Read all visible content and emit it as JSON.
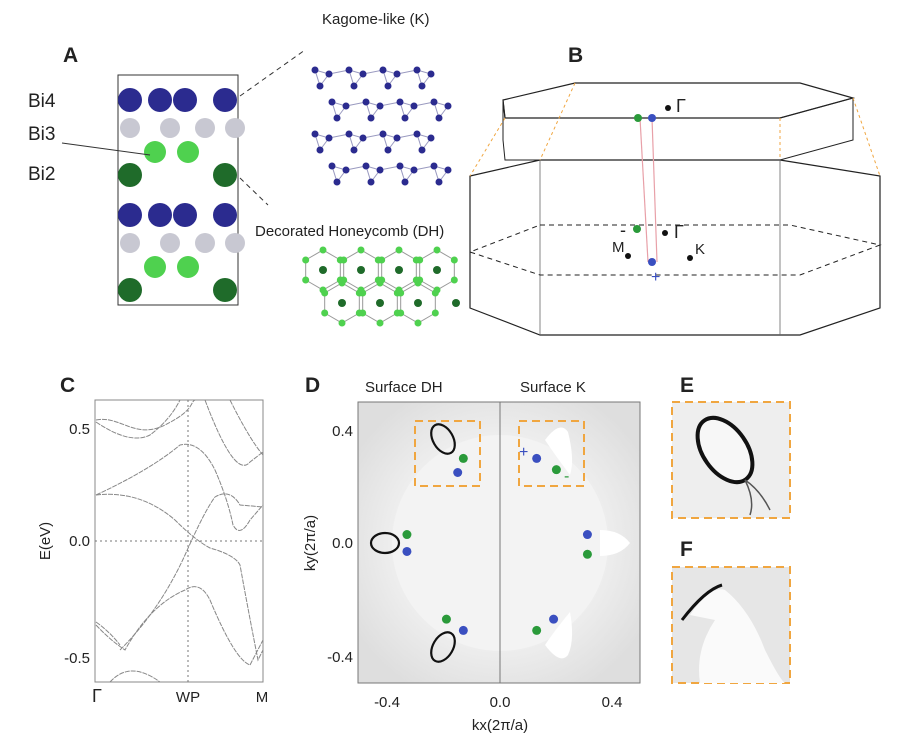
{
  "panels": {
    "A": {
      "letter": "A",
      "atom_labels": [
        "Bi4",
        "Bi3",
        "Bi2"
      ],
      "kagome_label": "Kagome-like (K)",
      "honeycomb_label": "Decorated Honeycomb (DH)"
    },
    "B": {
      "letter": "B",
      "points": {
        "gamma_top": "Γ",
        "gamma": "Γ",
        "M": "M",
        "K": "K",
        "minus": "-",
        "plus": "+"
      }
    },
    "C": {
      "letter": "C",
      "ylabel": "E(eV)",
      "yticks": [
        "0.5",
        "0.0",
        "-0.5"
      ],
      "xticks": [
        "Γ",
        "WP",
        "M"
      ]
    },
    "D": {
      "letter": "D",
      "left_title": "Surface DH",
      "right_title": "Surface K",
      "ylabel": "ky(2π/a)",
      "xlabel": "kx(2π/a)",
      "xticks": [
        "-0.4",
        "0.0",
        "0.4"
      ],
      "yticks": [
        "0.4",
        "0.0",
        "-0.4"
      ],
      "plus": "+",
      "minus": "-"
    },
    "E": {
      "letter": "E"
    },
    "F": {
      "letter": "F"
    }
  },
  "colors": {
    "bi4": "#2b2b8f",
    "bi3": "#c8c8d2",
    "green_light": "#4fd14f",
    "bi2": "#1f6b2a",
    "blue_point": "#3a4fc0",
    "green_point": "#2a9a3a",
    "box_orange": "#f0a640"
  },
  "chart_data": {
    "type": "scatter",
    "xlabel": "kx(2π/a)",
    "ylabel": "ky(2π/a)",
    "xlim": [
      -0.5,
      0.5
    ],
    "ylim": [
      -0.5,
      0.5
    ],
    "series": [
      {
        "color": "blue",
        "x": [
          -0.15,
          -0.33,
          -0.13,
          0.13,
          0.31,
          0.19
        ],
        "y": [
          0.25,
          -0.03,
          -0.31,
          0.3,
          0.03,
          -0.27
        ]
      },
      {
        "color": "green",
        "x": [
          -0.13,
          -0.33,
          -0.19,
          0.2,
          0.31,
          0.13
        ],
        "y": [
          0.3,
          0.03,
          -0.27,
          0.26,
          -0.04,
          -0.31
        ]
      }
    ]
  }
}
